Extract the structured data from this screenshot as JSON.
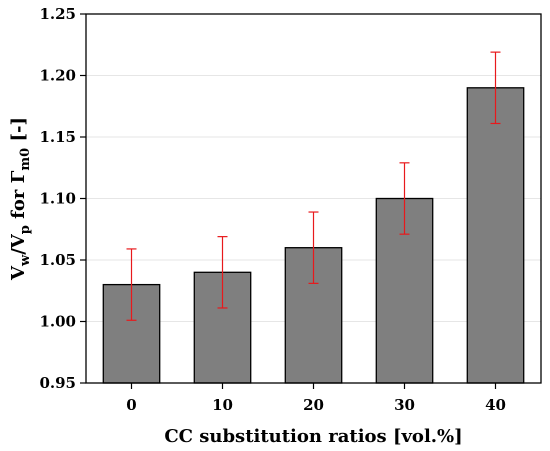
{
  "chart_data": {
    "type": "bar",
    "categories": [
      "0",
      "10",
      "20",
      "30",
      "40"
    ],
    "values": [
      1.03,
      1.04,
      1.06,
      1.1,
      1.19
    ],
    "error": [
      0.029,
      0.029,
      0.029,
      0.029,
      0.029
    ],
    "xlabel": "CC substitution ratios [vol.%]",
    "ylabel_parts": {
      "v1": "V",
      "sub1": "w",
      "slash": "/V",
      "sub2": "p",
      "mid": " for Γ",
      "sub3": "m0",
      "end": " [-]"
    },
    "ylim": [
      0.95,
      1.25
    ],
    "yticks": [
      "0.95",
      "1.00",
      "1.05",
      "1.10",
      "1.15",
      "1.20",
      "1.25"
    ],
    "grid": true,
    "colors": {
      "bar": "#7f7f7f",
      "bar_edge": "#000000",
      "error": "#e8191c",
      "grid": "#e6e6e6"
    }
  }
}
